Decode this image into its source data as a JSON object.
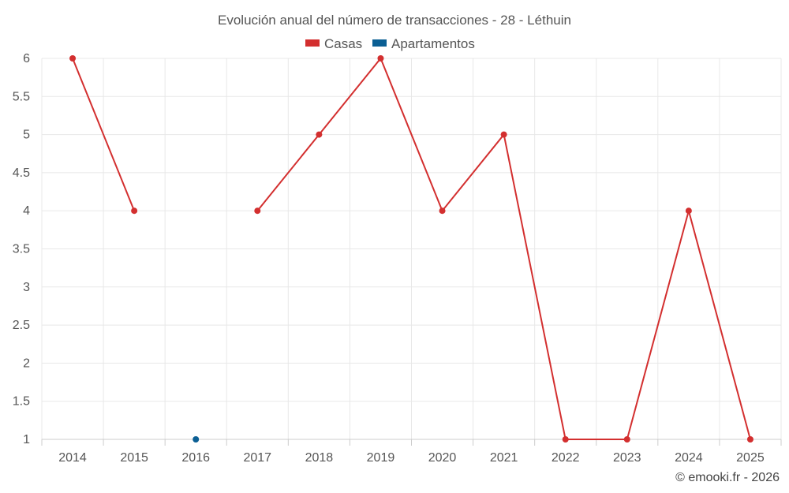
{
  "chart_data": {
    "type": "line",
    "title": "Evolución anual del número de transacciones - 28 - Léthuin",
    "categories": [
      "2014",
      "2015",
      "2016",
      "2017",
      "2018",
      "2019",
      "2020",
      "2021",
      "2022",
      "2023",
      "2024",
      "2025"
    ],
    "series": [
      {
        "name": "Casas",
        "color": "#d32f2f",
        "values": [
          6,
          4,
          null,
          4,
          5,
          6,
          4,
          5,
          1,
          1,
          4,
          1
        ]
      },
      {
        "name": "Apartamentos",
        "color": "#0b5f94",
        "values": [
          null,
          null,
          1,
          null,
          null,
          null,
          null,
          null,
          null,
          null,
          null,
          null
        ]
      }
    ],
    "ylim": [
      1,
      6
    ],
    "yticks": [
      "1",
      "1.5",
      "2",
      "2.5",
      "3",
      "3.5",
      "4",
      "4.5",
      "5",
      "5.5",
      "6"
    ],
    "grid": true,
    "legend": "top-center",
    "credit": "© emooki.fr - 2026"
  }
}
